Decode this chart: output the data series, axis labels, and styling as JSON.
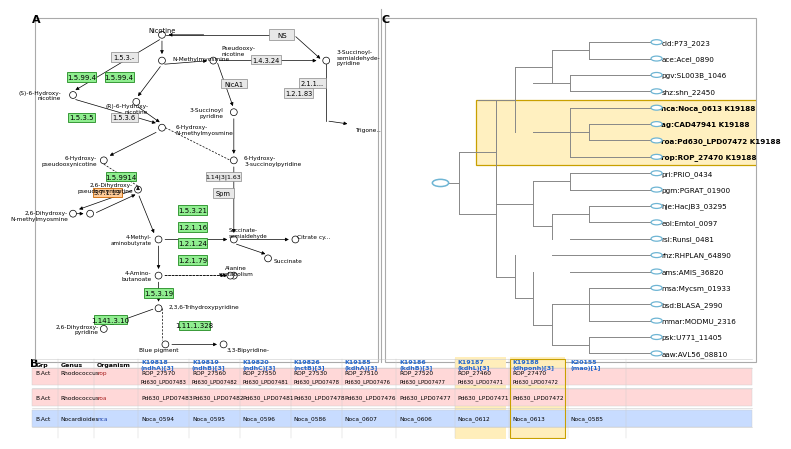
{
  "fig_width": 7.28,
  "fig_height": 4.3,
  "panel_A_label": "A",
  "panel_B_label": "B",
  "panel_C_label": "C",
  "tree_taxa": [
    "cid:P73_2023",
    "ace:Acel_0890",
    "pgv:SL003B_1046",
    "shz:shn_22450",
    "nca:Noca_0613 K19188",
    "ag:CAD47941 K19188",
    "roa:Pd630_LPD07472 K19188",
    "rop:ROP_27470 K19188",
    "pri:PRIO_0434",
    "pgm:PGRAT_01900",
    "hje:HacjB3_03295",
    "eol:Emtol_0097",
    "rsi:Runsl_0481",
    "rhz:RHPLAN_64890",
    "ams:AMIS_36820",
    "msa:Mycsm_01933",
    "bsd:BLASA_2990",
    "mmar:MODMU_2316",
    "psk:U771_11405",
    "aaw:AVL56_08810"
  ],
  "highlighted_taxa_indices": [
    4,
    5,
    6,
    7
  ],
  "highlight_color": "#FFF0C0",
  "highlight_border": "#C8A000",
  "tree_node_color": "#6EB5D4",
  "table_color_rop": "#FFD8D8",
  "table_color_roa": "#FFD8D8",
  "table_color_nca": "#C8DCFF",
  "table_color_highlight_col": "#FFEEBB",
  "bg_color": "#FFFFFF",
  "green_box_color": "#90EE90",
  "green_box_border": "#228B22",
  "gray_box_color": "#E8E8E8",
  "gray_box_border": "#888888",
  "orange_box_color": "#FFCC99",
  "orange_box_border": "#CC6600"
}
